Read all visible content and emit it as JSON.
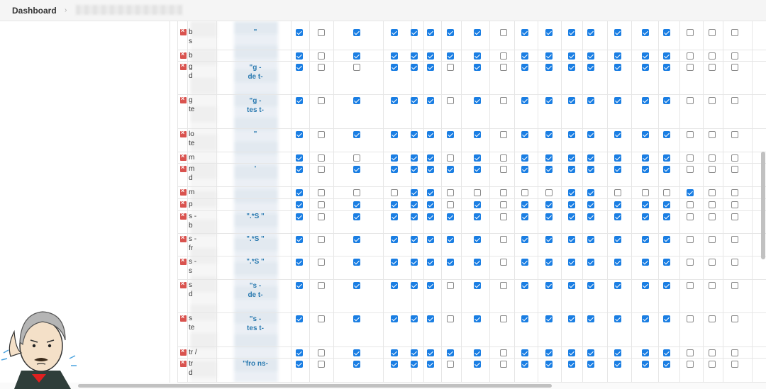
{
  "header": {
    "breadcrumb_title": "Dashboard",
    "breadcrumb_separator": "›"
  },
  "colors": {
    "checked": "#1a7ee3",
    "pattern_text": "#2a7ab0",
    "delete_icon": "#d9534f"
  },
  "rows": [
    {
      "name": "b",
      "name2": "s",
      "pattern": "\"",
      "checks": [
        1,
        0,
        1,
        1,
        1,
        1,
        1,
        1,
        0,
        1,
        1,
        1,
        1,
        1,
        1,
        1,
        0,
        0,
        0
      ]
    },
    {
      "name": "b",
      "name2": "",
      "pattern": "",
      "checks": [
        1,
        0,
        1,
        1,
        1,
        1,
        1,
        1,
        0,
        1,
        1,
        1,
        1,
        1,
        1,
        1,
        0,
        0,
        0
      ]
    },
    {
      "name": "g",
      "name2": "d",
      "pattern": "\"g -",
      "pattern2": "de t-",
      "checks": [
        1,
        0,
        0,
        1,
        1,
        1,
        0,
        1,
        0,
        1,
        1,
        1,
        1,
        1,
        1,
        1,
        0,
        0,
        0
      ]
    },
    {
      "name": "g",
      "name2": "te",
      "pattern": "\"g -",
      "pattern2": "tes t-",
      "checks": [
        1,
        0,
        1,
        1,
        1,
        1,
        0,
        1,
        0,
        1,
        1,
        1,
        1,
        1,
        1,
        1,
        0,
        0,
        0
      ]
    },
    {
      "name": "lo",
      "name2": "te",
      "pattern": "\"",
      "checks": [
        1,
        0,
        1,
        1,
        1,
        1,
        1,
        1,
        0,
        1,
        1,
        1,
        1,
        1,
        1,
        1,
        0,
        0,
        0
      ]
    },
    {
      "name": "m",
      "name2": "",
      "pattern": "",
      "checks": [
        1,
        0,
        0,
        1,
        1,
        1,
        0,
        1,
        0,
        1,
        1,
        1,
        1,
        1,
        1,
        1,
        0,
        0,
        0
      ]
    },
    {
      "name": "m",
      "name2": "d",
      "pattern": "'",
      "checks": [
        1,
        0,
        1,
        1,
        1,
        1,
        1,
        1,
        0,
        1,
        1,
        1,
        1,
        1,
        1,
        1,
        0,
        0,
        0
      ]
    },
    {
      "name": "m",
      "name2": "",
      "pattern": "",
      "checks": [
        1,
        0,
        0,
        0,
        1,
        1,
        0,
        0,
        0,
        0,
        0,
        1,
        1,
        0,
        0,
        0,
        1,
        0,
        0
      ]
    },
    {
      "name": "p",
      "name2": "",
      "pattern": "",
      "checks": [
        1,
        0,
        1,
        1,
        1,
        1,
        0,
        1,
        0,
        1,
        1,
        1,
        1,
        1,
        1,
        1,
        0,
        0,
        0
      ]
    },
    {
      "name": "s -",
      "name2": "b",
      "pattern": "\".*S \"",
      "checks": [
        1,
        0,
        1,
        1,
        1,
        1,
        1,
        1,
        0,
        1,
        1,
        1,
        1,
        1,
        1,
        1,
        0,
        0,
        0
      ]
    },
    {
      "name": "s -",
      "name2": "fr",
      "pattern": "\".*S \"",
      "checks": [
        1,
        0,
        1,
        1,
        1,
        1,
        1,
        1,
        0,
        1,
        1,
        1,
        1,
        1,
        1,
        1,
        0,
        0,
        0
      ]
    },
    {
      "name": "s -",
      "name2": "s",
      "pattern": "\".*S \"",
      "checks": [
        1,
        0,
        1,
        1,
        1,
        1,
        1,
        1,
        0,
        1,
        1,
        1,
        1,
        1,
        1,
        1,
        0,
        0,
        0
      ]
    },
    {
      "name": "s",
      "name2": "d",
      "pattern": "\"s -",
      "pattern2": "de t-",
      "checks": [
        1,
        0,
        1,
        1,
        1,
        1,
        0,
        1,
        0,
        1,
        1,
        1,
        1,
        1,
        1,
        1,
        0,
        0,
        0
      ]
    },
    {
      "name": "s",
      "name2": "te",
      "pattern": "\"s -",
      "pattern2": "tes t-",
      "checks": [
        1,
        0,
        1,
        1,
        1,
        1,
        0,
        1,
        0,
        1,
        1,
        1,
        1,
        1,
        1,
        1,
        0,
        0,
        0
      ]
    },
    {
      "name": "tr /",
      "name2": "",
      "pattern": "",
      "checks": [
        1,
        0,
        1,
        1,
        1,
        1,
        1,
        1,
        0,
        1,
        1,
        1,
        1,
        1,
        1,
        1,
        0,
        0,
        0
      ]
    },
    {
      "name": "tr",
      "name2": "d",
      "pattern": "\"fro ns-",
      "checks": [
        1,
        0,
        1,
        1,
        1,
        1,
        0,
        1,
        0,
        1,
        1,
        1,
        1,
        1,
        1,
        1,
        0,
        0,
        0
      ]
    }
  ]
}
